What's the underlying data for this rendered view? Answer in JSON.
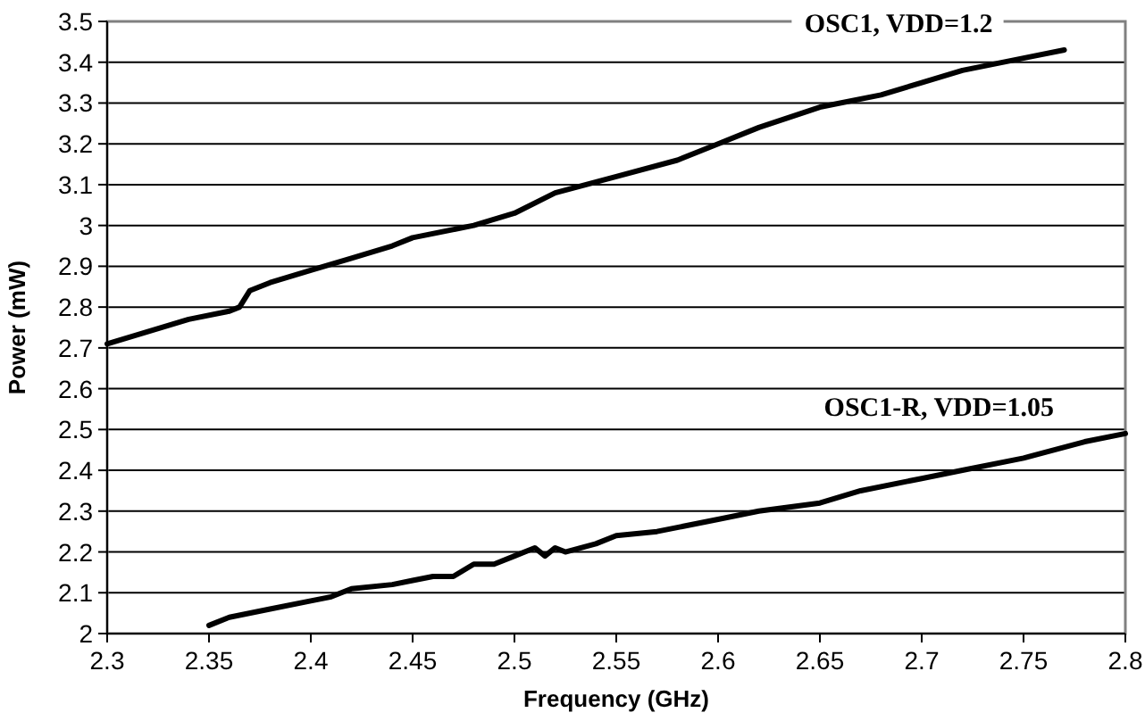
{
  "chart_data": {
    "type": "line",
    "xlabel": "Frequency (GHz)",
    "ylabel": "Power (mW)",
    "xlim": [
      2.3,
      2.8
    ],
    "xticks": [
      2.3,
      2.35,
      2.4,
      2.45,
      2.5,
      2.55,
      2.6,
      2.65,
      2.7,
      2.75,
      2.8
    ],
    "ylim": [
      2,
      3.5
    ],
    "yticks": [
      2,
      2.1,
      2.2,
      2.3,
      2.4,
      2.5,
      2.6,
      2.7,
      2.8,
      2.9,
      3,
      3.1,
      3.2,
      3.3,
      3.4,
      3.5
    ],
    "grid": "y",
    "line_style": "solid",
    "marker": "none",
    "series": [
      {
        "name": "OSC1, VDD=1.2",
        "color": "#000000",
        "x": [
          2.3,
          2.32,
          2.34,
          2.36,
          2.365,
          2.37,
          2.38,
          2.4,
          2.42,
          2.44,
          2.45,
          2.48,
          2.5,
          2.52,
          2.55,
          2.58,
          2.6,
          2.62,
          2.65,
          2.68,
          2.7,
          2.72,
          2.75,
          2.77
        ],
        "values": [
          2.71,
          2.74,
          2.77,
          2.79,
          2.8,
          2.84,
          2.86,
          2.89,
          2.92,
          2.95,
          2.97,
          3.0,
          3.03,
          3.08,
          3.12,
          3.16,
          3.2,
          3.24,
          3.29,
          3.32,
          3.35,
          3.38,
          3.41,
          3.43
        ]
      },
      {
        "name": "OSC1-R, VDD=1.05",
        "color": "#000000",
        "x": [
          2.35,
          2.36,
          2.38,
          2.4,
          2.41,
          2.42,
          2.44,
          2.45,
          2.46,
          2.47,
          2.48,
          2.49,
          2.5,
          2.51,
          2.515,
          2.52,
          2.525,
          2.54,
          2.55,
          2.57,
          2.6,
          2.62,
          2.65,
          2.67,
          2.7,
          2.72,
          2.75,
          2.78,
          2.8
        ],
        "values": [
          2.02,
          2.04,
          2.06,
          2.08,
          2.09,
          2.11,
          2.12,
          2.13,
          2.14,
          2.14,
          2.17,
          2.17,
          2.19,
          2.21,
          2.19,
          2.21,
          2.2,
          2.22,
          2.24,
          2.25,
          2.28,
          2.3,
          2.32,
          2.35,
          2.38,
          2.4,
          2.43,
          2.47,
          2.49
        ]
      }
    ]
  }
}
